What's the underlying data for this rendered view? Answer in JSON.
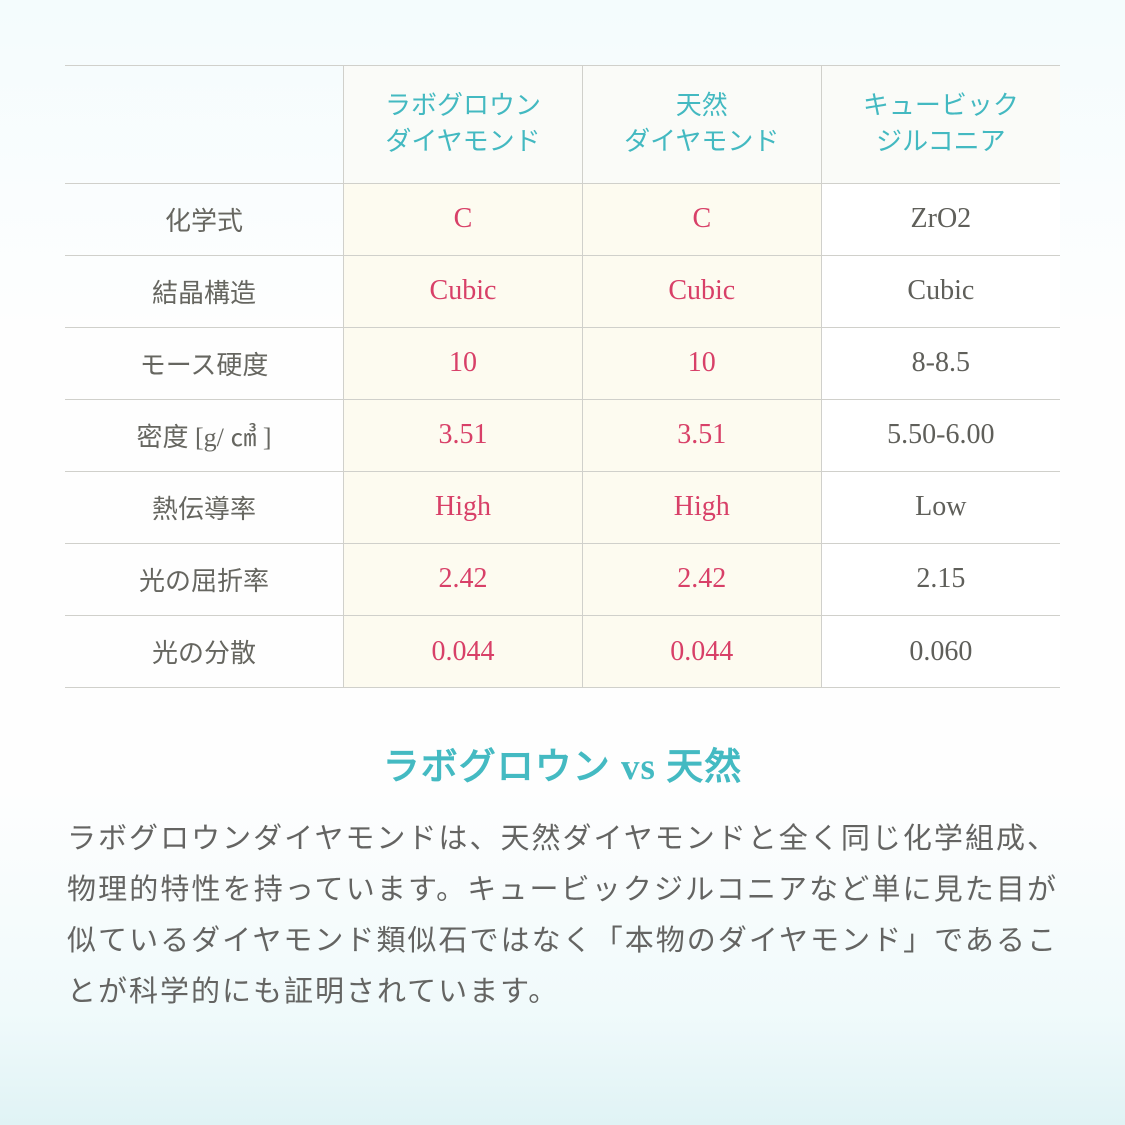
{
  "table": {
    "columns": [
      "",
      "ラボグロウン\nダイヤモンド",
      "天然\nダイヤモンド",
      "キュービック\nジルコニア"
    ],
    "rows": [
      {
        "label": "化学式",
        "lab": "C",
        "nat": "C",
        "cz": "ZrO2"
      },
      {
        "label": "結晶構造",
        "lab": "Cubic",
        "nat": "Cubic",
        "cz": "Cubic"
      },
      {
        "label": "モース硬度",
        "lab": "10",
        "nat": "10",
        "cz": "8-8.5"
      },
      {
        "label": "密度 [g/ ㎤ ]",
        "lab": "3.51",
        "nat": "3.51",
        "cz": "5.50-6.00"
      },
      {
        "label": "熱伝導率",
        "lab": "High",
        "nat": "High",
        "cz": "Low"
      },
      {
        "label": "光の屈折率",
        "lab": "2.42",
        "nat": "2.42",
        "cz": "2.15"
      },
      {
        "label": "光の分散",
        "lab": "0.044",
        "nat": "0.044",
        "cz": "0.060"
      }
    ],
    "colors": {
      "header_text": "#43b9c1",
      "row_label_text": "#666660",
      "highlight_text": "#d84068",
      "cz_text": "#5f5f5a",
      "highlight_bg": "#fdfbf0",
      "border": "#d0d0cb"
    },
    "font_sizes": {
      "header": 26,
      "cell": 28,
      "row_label": 26
    }
  },
  "headline": "ラボグロウン vs 天然",
  "body": "ラボグロウンダイヤモンドは、天然ダイヤモンドと全く同じ化学組成、物理的特性を持っています。キュービックジルコニアなど単に見た目が似ているダイヤモンド類似石ではなく「本物のダイヤモンド」であることが科学的にも証明されています。",
  "page_colors": {
    "bg_gradient_top": "#f4fcfd",
    "bg_gradient_bottom": "#e0f3f5",
    "headline_text": "#44bac2",
    "body_text": "#646462"
  }
}
